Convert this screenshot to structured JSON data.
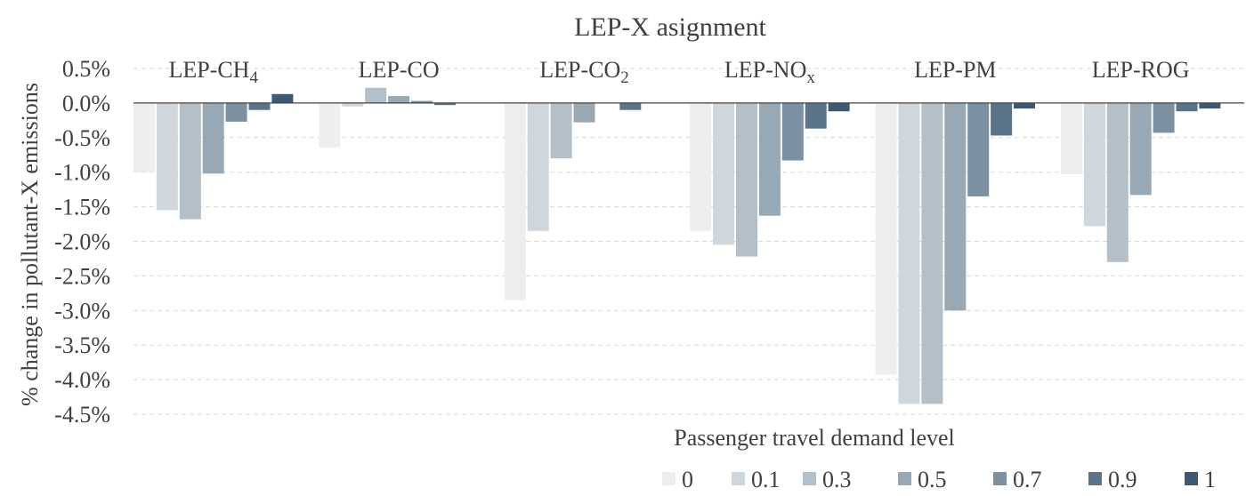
{
  "chart_data": {
    "type": "bar",
    "title": "LEP-X asignment",
    "ylabel": "% change in pollutant-X emissions",
    "legend_title": "Passenger travel demand level",
    "legend_placement": "bottom-right",
    "ylim": [
      -4.5,
      0.5
    ],
    "yticks": [
      0.5,
      0.0,
      -0.5,
      -1.0,
      -1.5,
      -2.0,
      -2.5,
      -3.0,
      -3.5,
      -4.0,
      -4.5
    ],
    "ytick_labels": [
      "0.5%",
      "0.0%",
      "-0.5%",
      "-1.0%",
      "-1.5%",
      "-2.0%",
      "-2.5%",
      "-3.0%",
      "-3.5%",
      "-4.0%",
      "-4.5%"
    ],
    "grid": "horizontal dashed",
    "categories": [
      {
        "base": "LEP-CH",
        "sub": "4"
      },
      {
        "base": "LEP-CO",
        "sub": ""
      },
      {
        "base": "LEP-CO",
        "sub": "2"
      },
      {
        "base": "LEP-NO",
        "sub": "x"
      },
      {
        "base": "LEP-PM",
        "sub": ""
      },
      {
        "base": "LEP-ROG",
        "sub": ""
      }
    ],
    "series": [
      {
        "name": "0",
        "color": "#eceef0",
        "values": [
          -1.0,
          -0.64,
          -2.85,
          -1.85,
          -3.93,
          -1.03
        ]
      },
      {
        "name": "0.1",
        "color": "#cfd7dc",
        "values": [
          -1.55,
          -0.05,
          -1.85,
          -2.05,
          -4.35,
          -1.78
        ]
      },
      {
        "name": "0.3",
        "color": "#b3bfc9",
        "values": [
          -1.68,
          0.22,
          -0.8,
          -2.22,
          -4.35,
          -2.3
        ]
      },
      {
        "name": "0.5",
        "color": "#98a8b4",
        "values": [
          -1.02,
          0.1,
          -0.28,
          -1.63,
          -3.0,
          -1.33
        ]
      },
      {
        "name": "0.7",
        "color": "#7b90a0",
        "values": [
          -0.27,
          0.03,
          0.0,
          -0.83,
          -1.35,
          -0.43
        ]
      },
      {
        "name": "0.9",
        "color": "#5b7489",
        "values": [
          -0.1,
          -0.03,
          -0.1,
          -0.37,
          -0.47,
          -0.12
        ]
      },
      {
        "name": "1",
        "color": "#3d5a72",
        "values": [
          0.13,
          0.0,
          0.0,
          -0.12,
          -0.08,
          -0.08
        ]
      }
    ],
    "colors": {
      "axis": "#404040",
      "grid": "#d9d9d9",
      "text": "#404040"
    }
  }
}
